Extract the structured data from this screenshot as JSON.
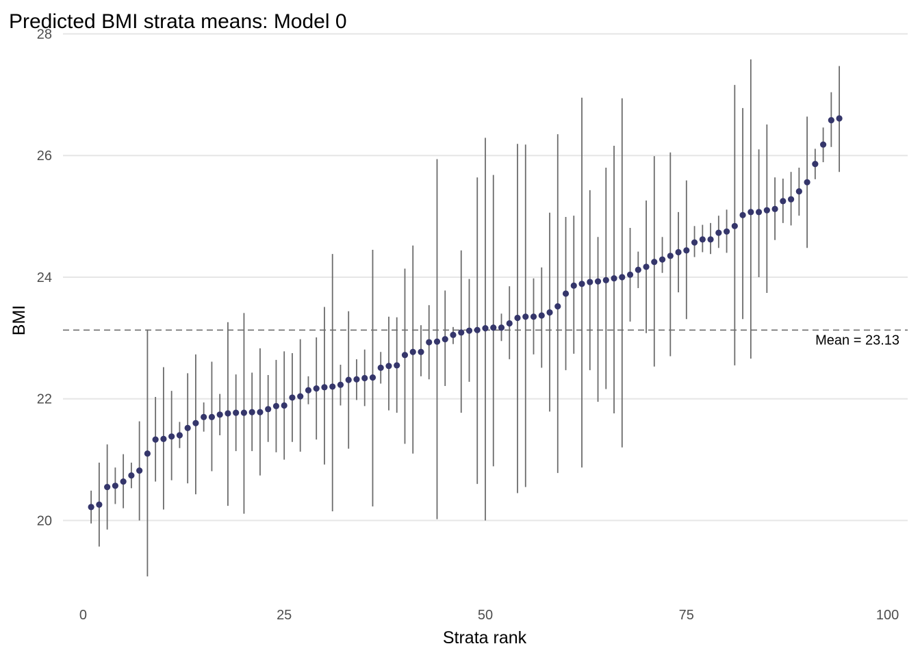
{
  "chart_data": {
    "type": "scatter",
    "title": "Predicted BMI strata means: Model 0",
    "xlabel": "Strata rank",
    "ylabel": "BMI",
    "xlim": [
      -2.5,
      102.5
    ],
    "ylim": [
      18.7,
      28.05
    ],
    "x_ticks": [
      0,
      25,
      50,
      75,
      100
    ],
    "y_ticks": [
      20,
      22,
      24,
      26,
      28
    ],
    "grid": true,
    "legend": "none",
    "point_color": "#35366b",
    "errorbar_color": "#6b6b6b",
    "reference_line": {
      "y": 23.13,
      "style": "dashed",
      "label": "Mean = 23.13"
    },
    "series": [
      {
        "x": [
          1,
          2,
          3,
          4,
          5,
          6,
          7,
          8,
          9,
          10,
          11,
          12,
          13,
          14,
          15,
          16,
          17,
          18,
          19,
          20,
          21,
          22,
          23,
          24,
          25,
          26,
          27,
          28,
          29,
          30,
          31,
          32,
          33,
          34,
          35,
          36,
          37,
          38,
          39,
          40,
          41,
          42,
          43,
          44,
          45,
          46,
          47,
          48,
          49,
          50,
          51,
          52,
          53,
          54,
          55,
          56,
          57,
          58,
          59,
          60,
          61,
          62,
          63,
          64,
          65,
          66,
          67,
          68,
          69,
          70,
          71,
          72,
          73,
          74,
          75,
          76,
          77,
          78,
          79,
          80,
          81,
          82,
          83,
          84,
          85,
          86,
          87,
          88,
          89,
          90,
          91,
          92,
          93,
          94
        ],
        "y": [
          20.22,
          20.26,
          20.55,
          20.57,
          20.64,
          20.74,
          20.82,
          21.1,
          21.33,
          21.34,
          21.38,
          21.4,
          21.52,
          21.6,
          21.7,
          21.7,
          21.74,
          21.76,
          21.77,
          21.77,
          21.78,
          21.78,
          21.83,
          21.88,
          21.89,
          22.02,
          22.04,
          22.14,
          22.17,
          22.19,
          22.2,
          22.23,
          22.31,
          22.32,
          22.34,
          22.35,
          22.51,
          22.54,
          22.55,
          22.72,
          22.77,
          22.77,
          22.93,
          22.94,
          22.98,
          23.05,
          23.09,
          23.12,
          23.13,
          23.16,
          23.17,
          23.17,
          23.24,
          23.33,
          23.35,
          23.35,
          23.37,
          23.42,
          23.52,
          23.73,
          23.86,
          23.89,
          23.92,
          23.93,
          23.95,
          23.98,
          24.0,
          24.04,
          24.12,
          24.17,
          24.25,
          24.29,
          24.35,
          24.41,
          24.44,
          24.57,
          24.62,
          24.62,
          24.73,
          24.75,
          24.84,
          25.02,
          25.07,
          25.07,
          25.1,
          25.12,
          25.25,
          25.28,
          25.41,
          25.56,
          25.86,
          26.18,
          26.58,
          26.61
        ],
        "ymin": [
          19.95,
          19.57,
          19.85,
          20.27,
          20.2,
          20.53,
          20.0,
          19.08,
          20.64,
          20.18,
          20.66,
          21.19,
          20.61,
          20.43,
          21.46,
          20.81,
          21.4,
          20.24,
          21.14,
          20.11,
          21.14,
          20.74,
          21.29,
          21.12,
          21.0,
          21.29,
          21.13,
          21.91,
          21.33,
          20.92,
          20.15,
          21.89,
          21.18,
          21.98,
          21.88,
          20.23,
          22.25,
          21.81,
          21.77,
          21.26,
          21.1,
          22.37,
          22.32,
          20.02,
          22.21,
          22.9,
          21.77,
          22.28,
          20.6,
          20.0,
          20.89,
          22.95,
          22.65,
          20.45,
          20.55,
          22.73,
          22.51,
          21.79,
          20.78,
          22.47,
          22.74,
          20.87,
          22.47,
          21.95,
          22.16,
          21.76,
          21.2,
          23.27,
          23.82,
          23.08,
          22.53,
          24.07,
          22.7,
          23.75,
          23.31,
          24.33,
          24.41,
          24.38,
          24.48,
          24.4,
          22.55,
          23.31,
          22.66,
          24.0,
          23.74,
          24.61,
          24.89,
          24.85,
          25.01,
          24.48,
          25.61,
          25.89,
          26.14,
          25.73
        ],
        "ymax": [
          20.49,
          20.95,
          21.25,
          20.87,
          21.09,
          20.95,
          21.63,
          23.14,
          22.03,
          22.52,
          22.13,
          21.62,
          22.42,
          22.73,
          21.94,
          22.61,
          22.08,
          23.26,
          22.4,
          23.41,
          22.43,
          22.83,
          22.39,
          22.64,
          22.78,
          22.75,
          22.98,
          22.37,
          23.01,
          23.51,
          24.38,
          22.56,
          23.44,
          22.65,
          22.81,
          24.45,
          22.77,
          23.35,
          23.34,
          24.14,
          24.52,
          23.21,
          23.54,
          25.94,
          23.78,
          23.18,
          24.44,
          23.97,
          25.64,
          26.29,
          25.68,
          23.4,
          23.85,
          26.19,
          26.18,
          23.98,
          24.16,
          25.06,
          26.35,
          24.99,
          25.01,
          26.95,
          25.43,
          24.66,
          25.8,
          26.16,
          26.94,
          24.81,
          24.42,
          25.26,
          25.99,
          24.66,
          26.05,
          25.07,
          25.59,
          24.84,
          24.86,
          24.89,
          25.01,
          25.11,
          27.16,
          26.78,
          27.58,
          26.1,
          26.51,
          25.64,
          25.62,
          25.73,
          25.8,
          26.64,
          26.11,
          26.46,
          27.04,
          27.47
        ]
      }
    ]
  }
}
